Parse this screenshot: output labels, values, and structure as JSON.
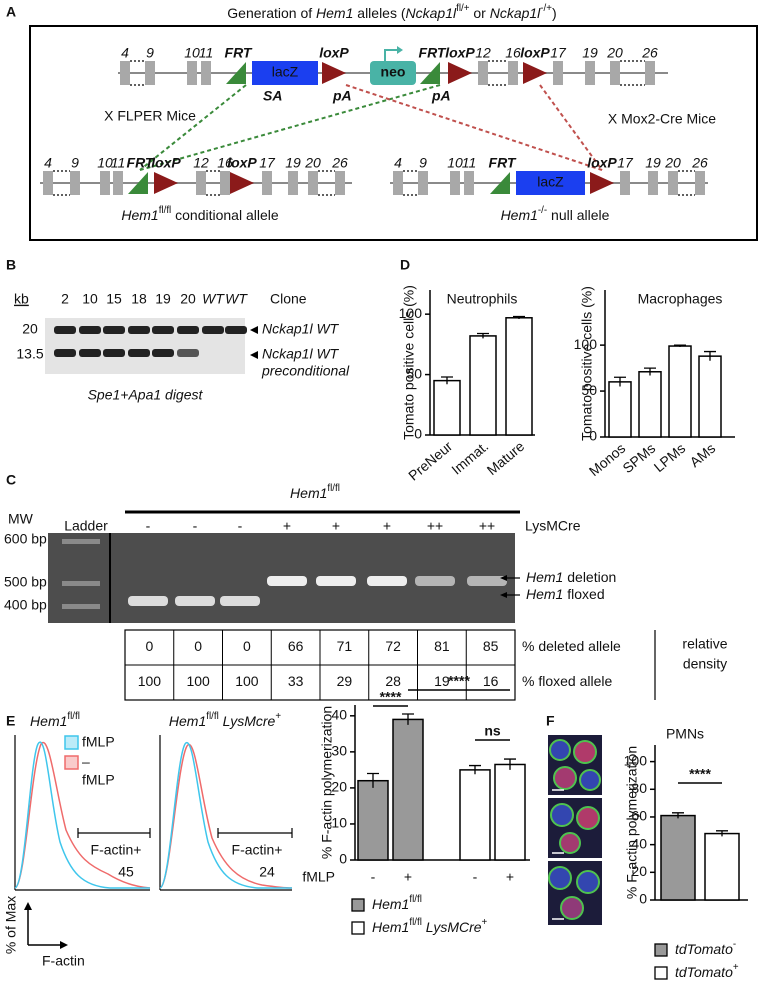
{
  "panel_a": {
    "label": "A",
    "title": [
      "Generation of ",
      "Hem1",
      " alleles (",
      "Nckap1l",
      "fl/+",
      " or ",
      "Nckap1l",
      "-/+",
      ")"
    ],
    "top": {
      "exons": [
        "4",
        "9",
        "10",
        "11",
        "12",
        "16",
        "17",
        "19",
        "20",
        "26"
      ],
      "frt": [
        "FRT",
        "FRT"
      ],
      "loxp": [
        "loxP",
        "loxP",
        "loxP"
      ],
      "lacz": "lacZ",
      "sa": "SA",
      "pa": [
        "pA",
        "pA"
      ],
      "neo": "neo"
    },
    "flper": "X FLPER Mice",
    "cre": "X Mox2-Cre Mice",
    "conditional": {
      "exons": [
        "4",
        "9",
        "10",
        "11",
        "12",
        "16",
        "17",
        "19",
        "20",
        "26"
      ],
      "frt": "FRT",
      "loxp": [
        "loxP",
        "loxP"
      ],
      "caption": [
        "Hem1",
        "fl/fl",
        " conditional allele"
      ]
    },
    "null": {
      "exons": [
        "4",
        "9",
        "10",
        "11",
        "17",
        "19",
        "20",
        "26"
      ],
      "frt": "FRT",
      "lacz": "lacZ",
      "loxp": "loxP",
      "caption": [
        "Hem1",
        "-/-",
        " null allele"
      ]
    }
  },
  "panel_b": {
    "label": "B",
    "unit": "kb",
    "sizes": [
      20,
      13.5
    ],
    "lanes": [
      "2",
      "10",
      "15",
      "18",
      "19",
      "20",
      "WT",
      "WT"
    ],
    "lane_title": "Clone",
    "bands": [
      [
        "Nckap1l WT"
      ],
      [
        "Nckap1l WT",
        "preconditional"
      ]
    ],
    "caption": "Spe1+Apa1 digest"
  },
  "panel_c": {
    "label": "C",
    "genotype": [
      "Hem1",
      "fl/fl"
    ],
    "mw": "MW",
    "ladder": "Ladder",
    "markers": [
      "600 bp",
      "500 bp",
      "400 bp"
    ],
    "lysmcre": [
      "-",
      "-",
      "-",
      "+",
      "+",
      "+",
      "++",
      "++"
    ],
    "lysmcre_label": "LysMCre",
    "bands": [
      [
        "Hem1",
        " deletion"
      ],
      [
        "Hem1",
        " floxed"
      ]
    ],
    "table": {
      "rows": [
        {
          "values": [
            0,
            0,
            0,
            66,
            71,
            72,
            81,
            85
          ],
          "label": "% deleted allele"
        },
        {
          "values": [
            100,
            100,
            100,
            33,
            29,
            28,
            19,
            16
          ],
          "label": "% floxed allele"
        }
      ],
      "note": [
        "relative",
        "density"
      ]
    }
  },
  "panel_d": {
    "label": "D"
  },
  "panel_e": {
    "label": "E",
    "histograms": [
      {
        "title": [
          "Hem1",
          "fl/fl"
        ],
        "gate": "F-actin+",
        "value": 45
      },
      {
        "title": [
          "Hem1",
          "fl/fl",
          " LysMcre",
          "+"
        ],
        "gate": "F-actin+",
        "value": 24
      }
    ],
    "legend": [
      {
        "label": [
          "fMLP"
        ],
        "color": "#3fc6ec"
      },
      {
        "label": [
          "–",
          "fMLP"
        ],
        "color": "#ef6b6b"
      }
    ],
    "y_axis": "% of Max",
    "x_axis": "F-actin"
  },
  "panel_f": {
    "label": "F"
  },
  "chart_data": [
    {
      "type": "bar",
      "title": "Neutrophils",
      "y_label": "Tomato positive cells (%)",
      "categories": [
        "PreNeur",
        "Immat.",
        "Mature"
      ],
      "values": [
        45,
        82,
        97
      ],
      "errors": [
        3,
        2,
        1
      ],
      "color": "#ffffff",
      "ylim": [
        0,
        120
      ],
      "yticks": [
        0,
        50,
        100
      ]
    },
    {
      "type": "bar",
      "title": "Macrophages",
      "y_label": "Tomato positive cells (%)",
      "categories": [
        "Monos",
        "SPMs",
        "LPMs",
        "AMs"
      ],
      "values": [
        60,
        71,
        99,
        88
      ],
      "errors": [
        5,
        4,
        1,
        5
      ],
      "color": "#ffffff",
      "ylim": [
        0,
        160
      ],
      "yticks": [
        0,
        50,
        100
      ]
    },
    {
      "type": "bar",
      "y_label": "% F-actin polymerization",
      "x_label": "fMLP",
      "categories": [
        "-",
        "+",
        "-",
        "+"
      ],
      "values": [
        22,
        39,
        25,
        26.5
      ],
      "errors": [
        2,
        1.5,
        1.2,
        1.5
      ],
      "colors": [
        "#999999",
        "#999999",
        "#ffffff",
        "#ffffff"
      ],
      "ylim": [
        0,
        43
      ],
      "yticks": [
        0,
        10,
        20,
        30,
        40
      ],
      "annotations": [
        "****",
        "****",
        "ns"
      ],
      "legend": [
        {
          "name": [
            "Hem1",
            "fl/fl"
          ],
          "color": "#999999"
        },
        {
          "name": [
            "Hem1",
            "fl/fl",
            " LysMCre",
            "+"
          ],
          "color": "#ffffff"
        }
      ]
    },
    {
      "type": "bar",
      "title": "PMNs",
      "y_label": "% F-actin polymerization",
      "values": [
        61,
        48
      ],
      "errors": [
        2,
        2
      ],
      "colors": [
        "#999999",
        "#ffffff"
      ],
      "ylim": [
        0,
        112
      ],
      "yticks": [
        0,
        20,
        40,
        60,
        80,
        100
      ],
      "annotations": [
        "****"
      ],
      "legend": [
        {
          "name": [
            "tdTomato",
            "-"
          ],
          "color": "#999999"
        },
        {
          "name": [
            "tdTomato",
            "+"
          ],
          "color": "#ffffff"
        }
      ]
    }
  ]
}
